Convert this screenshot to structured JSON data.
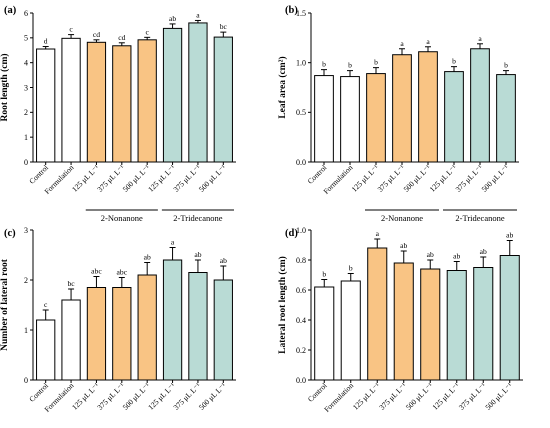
{
  "colors": {
    "control": "#ffffff",
    "nonanone": "#f9c484",
    "tridecanone": "#b9dbd5",
    "edge": "#000000"
  },
  "group_labels": [
    "2-Nonanone",
    "2-Tridecanone"
  ],
  "chart_data": [
    {
      "type": "bar",
      "panel": "(a)",
      "ylabel": "Root length (cm)",
      "ylim": [
        0,
        6
      ],
      "yticks": [
        "0",
        "1",
        "2",
        "3",
        "4",
        "5",
        "6"
      ],
      "categories": [
        "Control",
        "Formulation",
        "125 μL L⁻¹",
        "375 μL L⁻¹",
        "500 μL L⁻¹",
        "125 μL L⁻¹",
        "375 μL L⁻¹",
        "500 μL L⁻¹"
      ],
      "values": [
        4.55,
        4.98,
        4.82,
        4.68,
        4.92,
        5.38,
        5.6,
        5.03
      ],
      "errors": [
        0.1,
        0.15,
        0.1,
        0.12,
        0.1,
        0.18,
        0.1,
        0.2
      ],
      "letters": [
        "d",
        "c",
        "cd",
        "cd",
        "c",
        "ab",
        "a",
        "bc"
      ],
      "groups": [
        "control",
        "control",
        "nonanone",
        "nonanone",
        "nonanone",
        "tridecanone",
        "tridecanone",
        "tridecanone"
      ]
    },
    {
      "type": "bar",
      "panel": "(b)",
      "ylabel": "Leaf area (cm²)",
      "ylim": [
        0,
        1.5
      ],
      "yticks": [
        "0.0",
        "0.5",
        "1.0",
        "1.5"
      ],
      "categories": [
        "Control",
        "Formulation",
        "125 μL L⁻¹",
        "375 μL L⁻¹",
        "500 μL L⁻¹",
        "125 μL L⁻¹",
        "375 μL L⁻¹",
        "500 μL L⁻¹"
      ],
      "values": [
        0.87,
        0.86,
        0.89,
        1.08,
        1.11,
        0.91,
        1.14,
        0.88
      ],
      "errors": [
        0.06,
        0.06,
        0.06,
        0.06,
        0.05,
        0.05,
        0.05,
        0.04
      ],
      "letters": [
        "b",
        "b",
        "b",
        "a",
        "a",
        "b",
        "a",
        "b"
      ],
      "groups": [
        "control",
        "control",
        "nonanone",
        "nonanone",
        "nonanone",
        "tridecanone",
        "tridecanone",
        "tridecanone"
      ]
    },
    {
      "type": "bar",
      "panel": "(c)",
      "ylabel": "Number of lateral root",
      "ylim": [
        0,
        3
      ],
      "yticks": [
        "0",
        "1",
        "2",
        "3"
      ],
      "categories": [
        "Control",
        "Formulation",
        "125 μL L⁻¹",
        "375 μL L⁻¹",
        "500 μL L⁻¹",
        "125 μL L⁻¹",
        "375 μL L⁻¹",
        "500 μL L⁻¹"
      ],
      "values": [
        1.2,
        1.6,
        1.85,
        1.85,
        2.1,
        2.4,
        2.15,
        2.0
      ],
      "errors": [
        0.2,
        0.22,
        0.22,
        0.2,
        0.25,
        0.25,
        0.25,
        0.28
      ],
      "letters": [
        "c",
        "bc",
        "abc",
        "abc",
        "ab",
        "a",
        "ab",
        "ab"
      ],
      "groups": [
        "control",
        "control",
        "nonanone",
        "nonanone",
        "nonanone",
        "tridecanone",
        "tridecanone",
        "tridecanone"
      ]
    },
    {
      "type": "bar",
      "panel": "(d)",
      "ylabel": "Lateral root length (cm)",
      "ylim": [
        0,
        1.0
      ],
      "yticks": [
        "0.0",
        "0.2",
        "0.4",
        "0.6",
        "0.8",
        "1.0"
      ],
      "categories": [
        "Control",
        "Formulation",
        "125 μL L⁻¹",
        "375 μL L⁻¹",
        "500 μL L⁻¹",
        "125 μL L⁻¹",
        "375 μL L⁻¹",
        "500 μL L⁻¹"
      ],
      "values": [
        0.62,
        0.66,
        0.88,
        0.78,
        0.74,
        0.73,
        0.75,
        0.83
      ],
      "errors": [
        0.05,
        0.05,
        0.06,
        0.08,
        0.06,
        0.06,
        0.07,
        0.1
      ],
      "letters": [
        "b",
        "b",
        "a",
        "ab",
        "ab",
        "ab",
        "ab",
        "ab"
      ],
      "groups": [
        "control",
        "control",
        "nonanone",
        "nonanone",
        "nonanone",
        "tridecanone",
        "tridecanone",
        "tridecanone"
      ]
    }
  ]
}
